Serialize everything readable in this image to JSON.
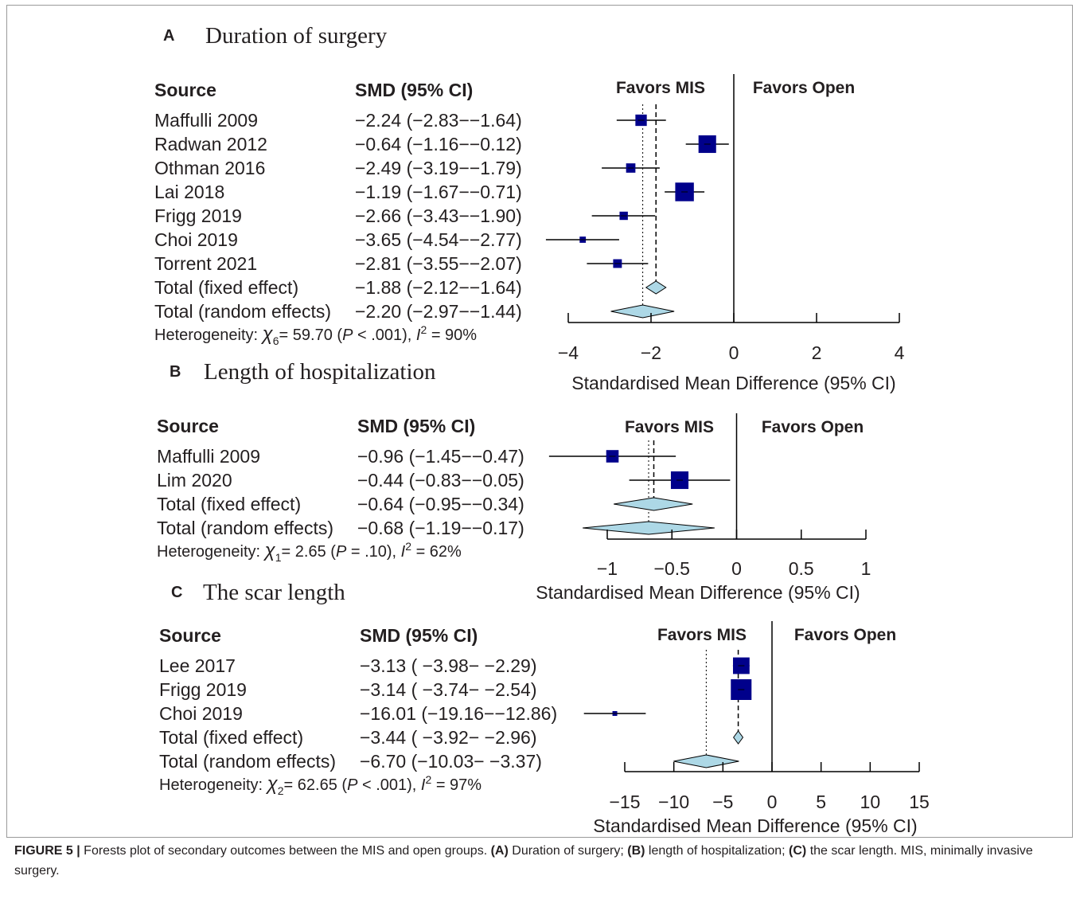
{
  "chart_data": [
    {
      "type": "forest",
      "panel": "A",
      "title": "Duration of surgery",
      "column_headers": {
        "source": "Source",
        "effect": "SMD (95% CI)"
      },
      "favors": {
        "left": "Favors MIS",
        "right": "Favors Open"
      },
      "xlabel": "Standardised Mean Difference (95% CI)",
      "xlim": [
        -4,
        4
      ],
      "xticks": [
        -4,
        -2,
        0,
        2,
        4
      ],
      "xtick_labels": [
        "−4",
        "−2",
        "0",
        "2",
        "4"
      ],
      "studies": [
        {
          "name": "Maffulli 2009",
          "ci_text": "−2.24 (−2.83−−1.64)",
          "smd": -2.24,
          "lower": -2.83,
          "upper": -1.64,
          "weight": 0.55
        },
        {
          "name": "Radwan 2012",
          "ci_text": "−0.64 (−1.16−−0.12)",
          "smd": -0.64,
          "lower": -1.16,
          "upper": -0.12,
          "weight": 0.85
        },
        {
          "name": "Othman 2016",
          "ci_text": "−2.49 (−3.19−−1.79)",
          "smd": -2.49,
          "lower": -3.19,
          "upper": -1.79,
          "weight": 0.45
        },
        {
          "name": "Lai 2018",
          "ci_text": "−1.19 (−1.67−−0.71)",
          "smd": -1.19,
          "lower": -1.67,
          "upper": -0.71,
          "weight": 0.9
        },
        {
          "name": "Frigg 2019",
          "ci_text": "−2.66 (−3.43−−1.90)",
          "smd": -2.66,
          "lower": -3.43,
          "upper": -1.9,
          "weight": 0.4
        },
        {
          "name": "Choi 2019",
          "ci_text": "−3.65 (−4.54−−2.77)",
          "smd": -3.65,
          "lower": -4.54,
          "upper": -2.77,
          "weight": 0.3
        },
        {
          "name": "Torrent 2021",
          "ci_text": "−2.81 (−3.55−−2.07)",
          "smd": -2.81,
          "lower": -3.55,
          "upper": -2.07,
          "weight": 0.42
        }
      ],
      "fixed": {
        "name": "Total (fixed effect)",
        "ci_text": "−1.88 (−2.12−−1.64)",
        "smd": -1.88,
        "lower": -2.12,
        "upper": -1.64
      },
      "random": {
        "name": "Total (random effects)",
        "ci_text": "−2.20 (−2.97−−1.44)",
        "smd": -2.2,
        "lower": -2.97,
        "upper": -1.44
      },
      "heterogeneity": {
        "label": "Heterogeneity:",
        "chi_df": "6",
        "chi_value": "= 59.70",
        "p_op": "<",
        "p_value": ".001",
        "i2_value": "= 90%"
      }
    },
    {
      "type": "forest",
      "panel": "B",
      "title": "Length of hospitalization",
      "column_headers": {
        "source": "Source",
        "effect": "SMD (95% CI)"
      },
      "favors": {
        "left": "Favors MIS",
        "right": "Favors Open"
      },
      "xlabel": "Standardised Mean Difference (95% CI)",
      "xlim": [
        -1,
        1
      ],
      "xticks": [
        -1,
        -0.5,
        0,
        0.5,
        1
      ],
      "xtick_labels": [
        "−1",
        "−0.5",
        "0",
        "0.5",
        "1"
      ],
      "studies": [
        {
          "name": "Maffulli 2009",
          "ci_text": "−0.96 (−1.45−−0.47)",
          "smd": -0.96,
          "lower": -1.45,
          "upper": -0.47,
          "weight": 0.6
        },
        {
          "name": "Lim 2020",
          "ci_text": "−0.44 (−0.83−−0.05)",
          "smd": -0.44,
          "lower": -0.83,
          "upper": -0.05,
          "weight": 0.85
        }
      ],
      "fixed": {
        "name": "Total (fixed effect)",
        "ci_text": "−0.64 (−0.95−−0.34)",
        "smd": -0.64,
        "lower": -0.95,
        "upper": -0.34
      },
      "random": {
        "name": "Total (random effects)",
        "ci_text": "−0.68 (−1.19−−0.17)",
        "smd": -0.68,
        "lower": -1.19,
        "upper": -0.17
      },
      "heterogeneity": {
        "label": "Heterogeneity:",
        "chi_df": "1",
        "chi_value": "= 2.65",
        "p_op": "=",
        "p_value": ".10",
        "i2_value": "= 62%"
      }
    },
    {
      "type": "forest",
      "panel": "C",
      "title": "The scar length",
      "column_headers": {
        "source": "Source",
        "effect": "SMD (95% CI)"
      },
      "favors": {
        "left": "Favors MIS",
        "right": "Favors Open"
      },
      "xlabel": "Standardised Mean Difference (95% CI)",
      "xlim": [
        -15,
        15
      ],
      "xticks": [
        -15,
        -10,
        -5,
        0,
        5,
        10,
        15
      ],
      "xtick_labels": [
        "−15",
        "−10",
        "−5",
        "0",
        "5",
        "10",
        "15"
      ],
      "studies": [
        {
          "name": "Lee 2017",
          "ci_text": "−3.13 ( −3.98− −2.29)",
          "smd": -3.13,
          "lower": -3.98,
          "upper": -2.29,
          "weight": 0.8
        },
        {
          "name": "Frigg 2019",
          "ci_text": "−3.14 ( −3.74− −2.54)",
          "smd": -3.14,
          "lower": -3.74,
          "upper": -2.54,
          "weight": 1.0
        },
        {
          "name": "Choi 2019",
          "ci_text": "−16.01 (−19.16−−12.86)",
          "smd": -16.01,
          "lower": -19.16,
          "upper": -12.86,
          "weight": 0.1
        }
      ],
      "fixed": {
        "name": "Total (fixed effect)",
        "ci_text": "−3.44 ( −3.92− −2.96)",
        "smd": -3.44,
        "lower": -3.92,
        "upper": -2.96
      },
      "random": {
        "name": "Total (random effects)",
        "ci_text": "−6.70 (−10.03− −3.37)",
        "smd": -6.7,
        "lower": -10.03,
        "upper": -3.37
      },
      "heterogeneity": {
        "label": "Heterogeneity:",
        "chi_df": "2",
        "chi_value": "= 62.65",
        "p_op": "<",
        "p_value": ".001",
        "i2_value": "= 97%"
      }
    }
  ],
  "caption": {
    "label": "FIGURE 5 |",
    "intro": "Forests plot of secondary outcomes between the MIS and open groups.",
    "a_label": "(A)",
    "a_text": "Duration of surgery;",
    "b_label": "(B)",
    "b_text": "length of hospitalization;",
    "c_label": "(C)",
    "c_text": "the scar length. MIS, minimally invasive surgery."
  },
  "colors": {
    "square": "#00008b",
    "diamond": "#add8e6",
    "text": "#231f20",
    "frame": "#9a9a9a"
  }
}
